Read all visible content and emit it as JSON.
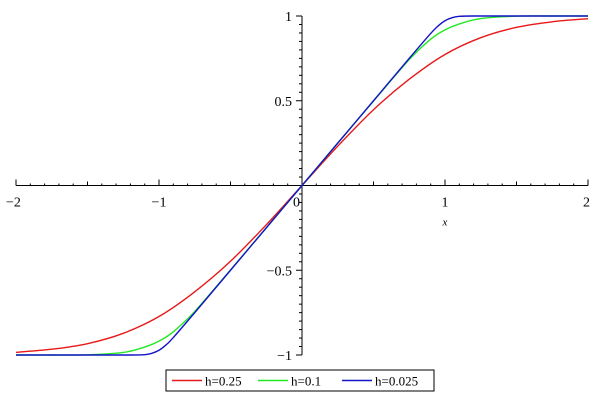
{
  "chart_data": {
    "type": "line",
    "title": "",
    "xlabel": "x",
    "ylabel": "",
    "xlim": [
      -2,
      2
    ],
    "ylim": [
      -1,
      1
    ],
    "grid": false,
    "legend_position": "bottom",
    "x_ticks": [
      {
        "value": -2,
        "label": "−2"
      },
      {
        "value": -1,
        "label": "−1"
      },
      {
        "value": 0,
        "label": "0"
      },
      {
        "value": 1,
        "label": "1"
      },
      {
        "value": 2,
        "label": "2"
      }
    ],
    "y_ticks": [
      {
        "value": 1,
        "label": "1"
      },
      {
        "value": 0.5,
        "label": "0.5"
      },
      {
        "value": -0.5,
        "label": "−0.5"
      },
      {
        "value": -1,
        "label": "−1"
      }
    ],
    "series": [
      {
        "name": "h=0.25",
        "color": "#e8191a",
        "x": [
          -2,
          -1.75,
          -1.5,
          -1.25,
          -1,
          -0.75,
          -0.5,
          -0.25,
          0,
          0.25,
          0.5,
          0.75,
          1,
          1.25,
          1.5,
          1.75,
          2
        ],
        "y": [
          -0.984,
          -0.966,
          -0.933,
          -0.872,
          -0.773,
          -0.627,
          -0.447,
          -0.232,
          0,
          0.232,
          0.447,
          0.627,
          0.773,
          0.872,
          0.933,
          0.966,
          0.984
        ]
      },
      {
        "name": "h=0.1",
        "color": "#22e822",
        "x": [
          -2,
          -1.75,
          -1.5,
          -1.25,
          -1.1,
          -1,
          -0.9,
          -0.75,
          -0.5,
          -0.25,
          0,
          0.25,
          0.5,
          0.75,
          0.9,
          1,
          1.1,
          1.25,
          1.5,
          1.75,
          2
        ],
        "y": [
          -1,
          -1,
          -0.999,
          -0.985,
          -0.953,
          -0.918,
          -0.863,
          -0.743,
          -0.498,
          -0.25,
          0,
          0.25,
          0.498,
          0.743,
          0.863,
          0.918,
          0.953,
          0.985,
          0.999,
          1,
          1
        ]
      },
      {
        "name": "h=0.025",
        "color": "#1414c8",
        "x": [
          -2,
          -1.5,
          -1.2,
          -1.1,
          -1.05,
          -1,
          -0.95,
          -0.9,
          -0.75,
          -0.5,
          -0.25,
          0,
          0.25,
          0.5,
          0.75,
          0.9,
          0.95,
          1,
          1.05,
          1.1,
          1.2,
          1.5,
          2
        ],
        "y": [
          -1,
          -1,
          -1,
          -0.998,
          -0.99,
          -0.972,
          -0.94,
          -0.897,
          -0.75,
          -0.5,
          -0.25,
          0,
          0.25,
          0.5,
          0.75,
          0.897,
          0.94,
          0.972,
          0.99,
          0.998,
          1,
          1,
          1
        ]
      }
    ]
  }
}
